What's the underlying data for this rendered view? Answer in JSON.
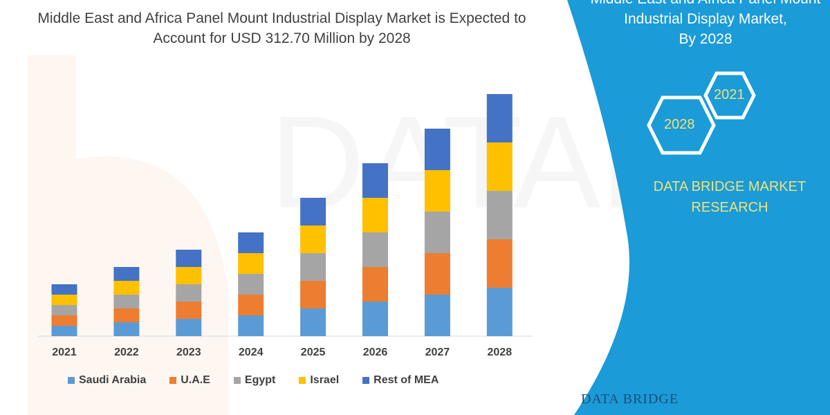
{
  "title": "Middle East and Africa Panel Mount Industrial Display Market is Expected to Account for USD 312.70 Million by 2028",
  "title_lines": [
    "Middle East and Africa Panel Mount Industrial Display Market is Expected to",
    "Account for USD 312.70 Million by 2028"
  ],
  "side_panel": {
    "title_lines": [
      "Middle East and Africa Panel Mount",
      "Industrial Display Market,",
      "By 2028"
    ],
    "hex_labels": [
      "2021",
      "2028"
    ],
    "brand_lines": [
      "DATA BRIDGE MARKET",
      "RESEARCH"
    ],
    "panel_color": "#1b9bd7",
    "accent_text_color": "#f0e27a"
  },
  "logo": {
    "text": "DATA BRIDGE"
  },
  "chart_data": {
    "type": "bar",
    "stacked": true,
    "title": "",
    "xlabel": "",
    "ylabel": "",
    "grid": false,
    "legend_position": "bottom",
    "categories": [
      "2021",
      "2022",
      "2023",
      "2024",
      "2025",
      "2026",
      "2027",
      "2028"
    ],
    "series": [
      {
        "name": "Saudi Arabia",
        "color": "#5b9bd5",
        "values": [
          15,
          20,
          25,
          30,
          40,
          50,
          60,
          70
        ]
      },
      {
        "name": "U.A.E",
        "color": "#ed7d31",
        "values": [
          15,
          20,
          25,
          30,
          40,
          50,
          60,
          70
        ]
      },
      {
        "name": "Egypt",
        "color": "#a5a5a5",
        "values": [
          15,
          20,
          25,
          30,
          40,
          50,
          60,
          70
        ]
      },
      {
        "name": "Israel",
        "color": "#ffc000",
        "values": [
          15,
          20,
          25,
          30,
          40,
          50,
          60,
          70
        ]
      },
      {
        "name": "Rest of MEA",
        "color": "#4472c4",
        "values": [
          15,
          20,
          25,
          30,
          40,
          50,
          60,
          70
        ]
      }
    ]
  }
}
